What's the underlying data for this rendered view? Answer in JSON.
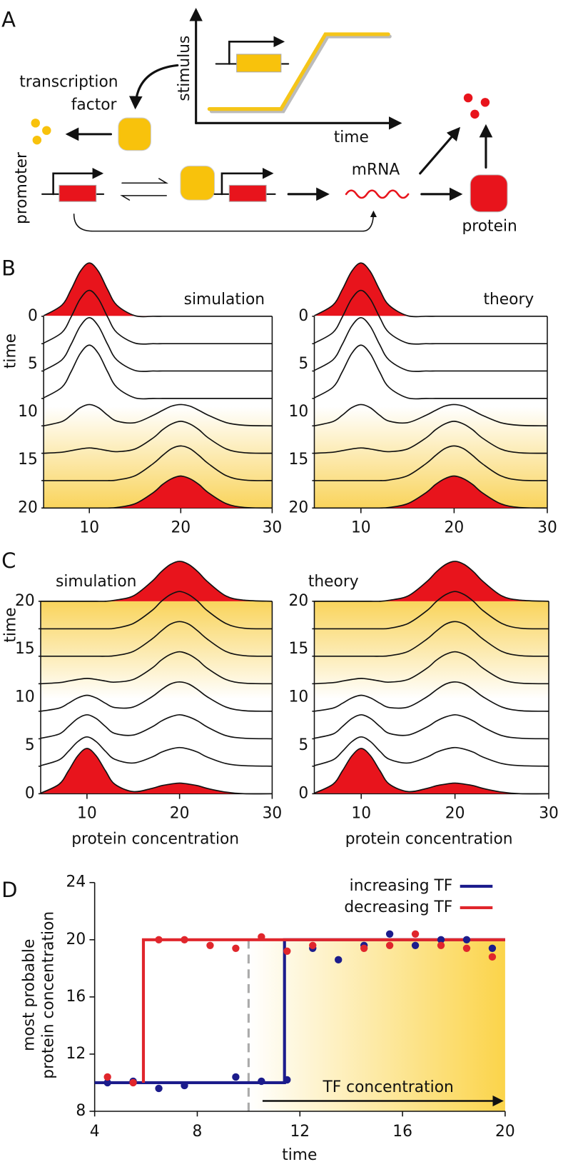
{
  "diagram": {
    "label": "A",
    "transcription_factor": [
      "transcription",
      "factor"
    ],
    "stimulus": "stimulus",
    "time": "time",
    "promoter": "promoter",
    "mrna": "mRNA",
    "protein": "protein"
  },
  "chart_data": [
    {
      "type": "ridgeline",
      "label": "B",
      "title": "simulation",
      "ylabel": "time",
      "xlim": [
        5,
        30
      ],
      "xticks": [
        10,
        20,
        30
      ],
      "ylim": [
        20,
        0
      ],
      "yticks": [
        0,
        5,
        10,
        15,
        20
      ],
      "x": [
        5,
        7,
        8,
        9,
        10,
        11,
        12,
        13,
        15,
        17,
        18,
        19,
        20,
        21,
        22,
        23,
        25,
        27,
        30
      ],
      "rows": [
        {
          "time": 0,
          "color": "#e8141c",
          "values": [
            0.01,
            0.21,
            0.5,
            0.84,
            1,
            0.84,
            0.5,
            0.21,
            0.01,
            0,
            0,
            0,
            0,
            0,
            0,
            0,
            0,
            0,
            0
          ]
        },
        {
          "time": 2.86,
          "values": [
            0.01,
            0.21,
            0.5,
            0.84,
            1,
            0.84,
            0.5,
            0.21,
            0.01,
            0,
            0,
            0,
            0,
            0,
            0,
            0,
            0,
            0,
            0
          ]
        },
        {
          "time": 5.71,
          "values": [
            0.01,
            0.21,
            0.5,
            0.84,
            1,
            0.84,
            0.5,
            0.21,
            0.01,
            0,
            0,
            0,
            0,
            0,
            0,
            0,
            0,
            0,
            0
          ]
        },
        {
          "time": 8.57,
          "values": [
            0.01,
            0.21,
            0.5,
            0.84,
            1,
            0.84,
            0.5,
            0.21,
            0.01,
            0,
            0,
            0,
            0,
            0,
            0,
            0,
            0,
            0,
            0
          ]
        },
        {
          "time": 11.43,
          "values": [
            0,
            0.08,
            0.2,
            0.34,
            0.4,
            0.34,
            0.2,
            0.09,
            0.06,
            0.2,
            0.29,
            0.37,
            0.4,
            0.37,
            0.29,
            0.2,
            0.06,
            0.01,
            0
          ]
        },
        {
          "time": 14.29,
          "values": [
            0,
            0.02,
            0.05,
            0.08,
            0.1,
            0.08,
            0.05,
            0.03,
            0.08,
            0.29,
            0.44,
            0.55,
            0.6,
            0.55,
            0.44,
            0.29,
            0.08,
            0.01,
            0
          ]
        },
        {
          "time": 17.14,
          "values": [
            0,
            0,
            0,
            0,
            0,
            0,
            0,
            0.01,
            0.09,
            0.32,
            0.47,
            0.6,
            0.65,
            0.6,
            0.47,
            0.32,
            0.09,
            0.01,
            0
          ]
        },
        {
          "time": 20,
          "color": "#e8141c",
          "values": [
            0,
            0,
            0,
            0,
            0,
            0,
            0,
            0.01,
            0.08,
            0.29,
            0.44,
            0.55,
            0.6,
            0.55,
            0.44,
            0.29,
            0.08,
            0.01,
            0
          ]
        }
      ]
    },
    {
      "type": "ridgeline",
      "title": "theory",
      "xlim": [
        5,
        30
      ],
      "xticks": [
        10,
        20,
        30
      ],
      "ylim": [
        20,
        0
      ],
      "yticks": [
        0,
        5,
        10,
        15,
        20
      ],
      "x": [
        5,
        7,
        8,
        9,
        10,
        11,
        12,
        13,
        15,
        17,
        18,
        19,
        20,
        21,
        22,
        23,
        25,
        27,
        30
      ],
      "rows": [
        {
          "time": 0,
          "color": "#e8141c",
          "values": [
            0.01,
            0.21,
            0.5,
            0.84,
            1,
            0.84,
            0.5,
            0.21,
            0.01,
            0,
            0,
            0,
            0,
            0,
            0,
            0,
            0,
            0,
            0
          ]
        },
        {
          "time": 2.86,
          "values": [
            0.01,
            0.21,
            0.5,
            0.84,
            1,
            0.84,
            0.5,
            0.21,
            0.01,
            0,
            0,
            0,
            0,
            0,
            0,
            0,
            0,
            0,
            0
          ]
        },
        {
          "time": 5.71,
          "values": [
            0.01,
            0.21,
            0.5,
            0.84,
            1,
            0.84,
            0.5,
            0.21,
            0.01,
            0,
            0,
            0,
            0,
            0,
            0,
            0,
            0,
            0,
            0
          ]
        },
        {
          "time": 8.57,
          "values": [
            0.01,
            0.21,
            0.5,
            0.84,
            1,
            0.84,
            0.5,
            0.21,
            0.01,
            0,
            0,
            0,
            0,
            0,
            0,
            0,
            0,
            0,
            0
          ]
        },
        {
          "time": 11.43,
          "values": [
            0,
            0.08,
            0.2,
            0.34,
            0.4,
            0.34,
            0.2,
            0.09,
            0.06,
            0.2,
            0.29,
            0.37,
            0.4,
            0.37,
            0.29,
            0.2,
            0.06,
            0.01,
            0
          ]
        },
        {
          "time": 14.29,
          "values": [
            0,
            0.02,
            0.05,
            0.08,
            0.1,
            0.08,
            0.05,
            0.03,
            0.08,
            0.29,
            0.44,
            0.55,
            0.6,
            0.55,
            0.44,
            0.29,
            0.08,
            0.01,
            0
          ]
        },
        {
          "time": 17.14,
          "values": [
            0,
            0,
            0,
            0,
            0,
            0,
            0,
            0.01,
            0.09,
            0.32,
            0.47,
            0.6,
            0.65,
            0.6,
            0.47,
            0.32,
            0.09,
            0.01,
            0
          ]
        },
        {
          "time": 20,
          "color": "#e8141c",
          "values": [
            0,
            0,
            0,
            0,
            0,
            0,
            0,
            0.01,
            0.08,
            0.29,
            0.44,
            0.55,
            0.6,
            0.55,
            0.44,
            0.29,
            0.08,
            0.01,
            0
          ]
        }
      ]
    },
    {
      "type": "ridgeline",
      "label": "C",
      "title": "simulation",
      "ylabel": "time",
      "xlabel": "protein concentration",
      "xlim": [
        5,
        30
      ],
      "xticks": [
        10,
        20,
        30
      ],
      "ylim": [
        0,
        20
      ],
      "yticks": [
        0,
        5,
        10,
        15,
        20
      ],
      "x": [
        5,
        7,
        8,
        9,
        10,
        11,
        12,
        13,
        15,
        17,
        18,
        19,
        20,
        21,
        22,
        23,
        25,
        27,
        30
      ],
      "rows": [
        {
          "time": 0,
          "color": "#e8141c",
          "values": [
            0.01,
            0.18,
            0.43,
            0.71,
            0.85,
            0.71,
            0.43,
            0.18,
            0.04,
            0.1,
            0.15,
            0.18,
            0.2,
            0.18,
            0.15,
            0.1,
            0.03,
            0,
            0
          ]
        },
        {
          "time": 2.86,
          "values": [
            0.01,
            0.12,
            0.28,
            0.46,
            0.55,
            0.46,
            0.28,
            0.13,
            0.06,
            0.17,
            0.26,
            0.32,
            0.35,
            0.32,
            0.26,
            0.17,
            0.05,
            0.01,
            0
          ]
        },
        {
          "time": 5.71,
          "values": [
            0.01,
            0.09,
            0.23,
            0.38,
            0.45,
            0.38,
            0.23,
            0.1,
            0.07,
            0.22,
            0.33,
            0.41,
            0.45,
            0.41,
            0.33,
            0.22,
            0.06,
            0.01,
            0
          ]
        },
        {
          "time": 8.57,
          "values": [
            0,
            0.06,
            0.15,
            0.25,
            0.3,
            0.25,
            0.15,
            0.07,
            0.08,
            0.27,
            0.4,
            0.51,
            0.55,
            0.51,
            0.4,
            0.27,
            0.08,
            0.01,
            0
          ]
        },
        {
          "time": 11.43,
          "values": [
            0,
            0.02,
            0.05,
            0.08,
            0.1,
            0.08,
            0.05,
            0.03,
            0.08,
            0.29,
            0.44,
            0.55,
            0.6,
            0.55,
            0.44,
            0.29,
            0.08,
            0.01,
            0
          ]
        },
        {
          "time": 14.29,
          "values": [
            0,
            0,
            0,
            0,
            0,
            0,
            0,
            0.01,
            0.09,
            0.32,
            0.47,
            0.6,
            0.65,
            0.6,
            0.47,
            0.32,
            0.09,
            0.01,
            0
          ]
        },
        {
          "time": 17.14,
          "values": [
            0,
            0,
            0,
            0,
            0,
            0,
            0,
            0.01,
            0.1,
            0.34,
            0.51,
            0.64,
            0.7,
            0.64,
            0.51,
            0.34,
            0.1,
            0.01,
            0
          ]
        },
        {
          "time": 20,
          "color": "#e8141c",
          "values": [
            0,
            0,
            0,
            0,
            0,
            0,
            0,
            0.02,
            0.1,
            0.37,
            0.55,
            0.69,
            0.75,
            0.69,
            0.55,
            0.37,
            0.1,
            0.02,
            0
          ]
        }
      ]
    },
    {
      "type": "ridgeline",
      "title": "theory",
      "xlabel": "protein concentration",
      "xlim": [
        5,
        30
      ],
      "xticks": [
        10,
        20,
        30
      ],
      "ylim": [
        0,
        20
      ],
      "yticks": [
        0,
        5,
        10,
        15,
        20
      ],
      "x": [
        5,
        7,
        8,
        9,
        10,
        11,
        12,
        13,
        15,
        17,
        18,
        19,
        20,
        21,
        22,
        23,
        25,
        27,
        30
      ],
      "rows": [
        {
          "time": 0,
          "color": "#e8141c",
          "values": [
            0.01,
            0.18,
            0.43,
            0.71,
            0.85,
            0.71,
            0.43,
            0.18,
            0.04,
            0.1,
            0.15,
            0.18,
            0.2,
            0.18,
            0.15,
            0.1,
            0.03,
            0,
            0
          ]
        },
        {
          "time": 2.86,
          "values": [
            0.01,
            0.12,
            0.28,
            0.46,
            0.55,
            0.46,
            0.28,
            0.13,
            0.06,
            0.17,
            0.26,
            0.32,
            0.35,
            0.32,
            0.26,
            0.17,
            0.05,
            0.01,
            0
          ]
        },
        {
          "time": 5.71,
          "values": [
            0.01,
            0.09,
            0.23,
            0.38,
            0.45,
            0.38,
            0.23,
            0.1,
            0.07,
            0.22,
            0.33,
            0.41,
            0.45,
            0.41,
            0.33,
            0.22,
            0.06,
            0.01,
            0
          ]
        },
        {
          "time": 8.57,
          "values": [
            0,
            0.06,
            0.15,
            0.25,
            0.3,
            0.25,
            0.15,
            0.07,
            0.08,
            0.27,
            0.4,
            0.51,
            0.55,
            0.51,
            0.4,
            0.27,
            0.08,
            0.01,
            0
          ]
        },
        {
          "time": 11.43,
          "values": [
            0,
            0.02,
            0.05,
            0.08,
            0.1,
            0.08,
            0.05,
            0.03,
            0.08,
            0.29,
            0.44,
            0.55,
            0.6,
            0.55,
            0.44,
            0.29,
            0.08,
            0.01,
            0
          ]
        },
        {
          "time": 14.29,
          "values": [
            0,
            0,
            0,
            0,
            0,
            0,
            0,
            0.01,
            0.09,
            0.32,
            0.47,
            0.6,
            0.65,
            0.6,
            0.47,
            0.32,
            0.09,
            0.01,
            0
          ]
        },
        {
          "time": 17.14,
          "values": [
            0,
            0,
            0,
            0,
            0,
            0,
            0,
            0.01,
            0.1,
            0.34,
            0.51,
            0.64,
            0.7,
            0.64,
            0.51,
            0.34,
            0.1,
            0.01,
            0
          ]
        },
        {
          "time": 20,
          "color": "#e8141c",
          "values": [
            0,
            0,
            0,
            0,
            0,
            0,
            0,
            0.02,
            0.1,
            0.37,
            0.55,
            0.69,
            0.75,
            0.69,
            0.55,
            0.37,
            0.1,
            0.02,
            0
          ]
        }
      ]
    },
    {
      "type": "line",
      "label": "D",
      "xlabel": "time",
      "ylabel": [
        "most probable",
        "protein concentration"
      ],
      "xlim": [
        4,
        20
      ],
      "xticks": [
        4,
        8,
        12,
        16,
        20
      ],
      "ylim": [
        8,
        24
      ],
      "yticks": [
        8,
        12,
        16,
        20,
        24
      ],
      "vline": 10,
      "annotation": "TF concentration",
      "series": [
        {
          "name": "increasing TF",
          "color": "#1c1c8c",
          "x": [
            4,
            11.4,
            11.4,
            20
          ],
          "values": [
            10,
            10,
            20,
            20
          ],
          "scatter_x": [
            4.5,
            5.5,
            6.5,
            7.5,
            9.5,
            10.5,
            11.5,
            12.5,
            13.5,
            14.5,
            15.5,
            16.5,
            17.5,
            18.5,
            19.5
          ],
          "scatter_values": [
            10,
            10.1,
            9.6,
            9.8,
            10.4,
            10.1,
            10.2,
            19.4,
            18.6,
            19.6,
            20.4,
            19.6,
            20,
            20,
            19.4
          ]
        },
        {
          "name": "decreasing TF",
          "color": "#e0262c",
          "x": [
            20,
            5.9,
            5.9
          ],
          "values": [
            20,
            20,
            10
          ],
          "scatter_x": [
            4.5,
            5.5,
            6.5,
            7.5,
            8.5,
            9.5,
            10.5,
            11.5,
            12.5,
            14.5,
            15.5,
            16.5,
            17.5,
            18.5,
            19.5
          ],
          "scatter_values": [
            10.4,
            10,
            20,
            20,
            19.6,
            19.4,
            20.2,
            19.2,
            19.6,
            19.4,
            19.6,
            20.4,
            19.6,
            19.4,
            18.8
          ]
        }
      ]
    }
  ]
}
